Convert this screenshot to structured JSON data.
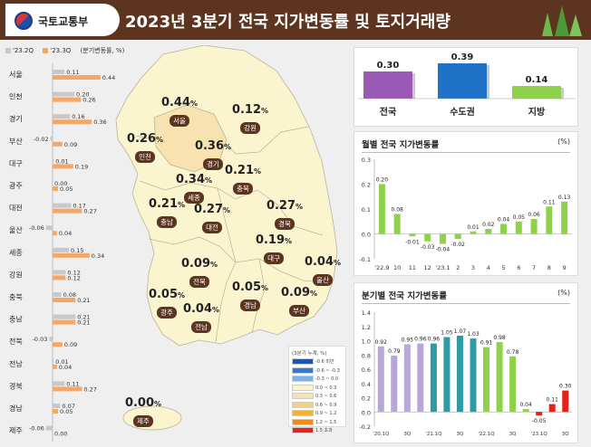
{
  "header": {
    "ministry": "국토교통부",
    "title": "2023년 3분기 전국 지가변동률 및 토지거래량"
  },
  "legend": {
    "q2": "'23.2Q",
    "q3": "'23.3Q",
    "unit": "(분기변동률, %)"
  },
  "colors": {
    "q2": "#c8c8c8",
    "q3": "#f4a867",
    "brand": "#5c3420",
    "purple": "#9b59b6",
    "blue": "#1f72c8",
    "green": "#8ed14b",
    "red": "#e5231b",
    "lavender": "#b8a6d6",
    "teal": "#2e9aa6",
    "map": "#fbf5cf",
    "map_light": "#f8e3b0"
  },
  "chart_data": [
    {
      "type": "bar",
      "title": "",
      "unit": "(분기변동률, %)",
      "categories": [
        "서울",
        "인천",
        "경기",
        "부산",
        "대구",
        "광주",
        "대전",
        "울산",
        "세종",
        "강원",
        "충북",
        "충남",
        "전북",
        "전남",
        "경북",
        "경남",
        "제주"
      ],
      "series": [
        {
          "name": "'23.2Q",
          "values": [
            0.11,
            0.2,
            0.16,
            -0.02,
            0.01,
            0.0,
            0.17,
            -0.06,
            0.15,
            0.12,
            0.08,
            0.21,
            -0.03,
            0.01,
            0.11,
            0.07,
            -0.06
          ]
        },
        {
          "name": "'23.3Q",
          "values": [
            0.44,
            0.26,
            0.36,
            0.09,
            0.19,
            0.05,
            0.27,
            0.04,
            0.34,
            0.12,
            0.21,
            0.21,
            0.09,
            0.04,
            0.27,
            0.05,
            0.0
          ]
        }
      ],
      "value_labels": {
        "q2": [
          "0.11",
          "0.20",
          "0.16",
          "-0.02",
          "0.01",
          "0.00",
          "0.17",
          "-0.06",
          "0.15",
          "0.12",
          "0.08",
          "0.21",
          "-0.03",
          "0.01",
          "0.11",
          "0.07",
          "-0.06"
        ],
        "q3": [
          "0.44",
          "0.26",
          "0.36",
          "0.09",
          "0.19",
          "0.05",
          "0.27",
          "0.04",
          "0.34",
          "0.12",
          "0.21",
          "0.21",
          "0.09",
          "0.04",
          "0.27",
          "0.05",
          "0.00"
        ]
      }
    },
    {
      "type": "bar",
      "title": "",
      "categories": [
        "전국",
        "수도권",
        "지방"
      ],
      "values": [
        0.3,
        0.39,
        0.14
      ],
      "value_labels": [
        "0.30",
        "0.39",
        "0.14"
      ]
    },
    {
      "type": "bar",
      "title": "월별 전국 지가변동률",
      "unit": "(%)",
      "categories": [
        "'22.9",
        "10",
        "11",
        "12",
        "'23.1",
        "2",
        "3",
        "4",
        "5",
        "6",
        "7",
        "8",
        "9"
      ],
      "values": [
        0.2,
        0.08,
        -0.01,
        -0.03,
        -0.04,
        -0.02,
        0.01,
        0.02,
        0.04,
        0.05,
        0.06,
        0.11,
        0.13
      ],
      "value_labels": [
        "0.20",
        "0.08",
        "-0.01",
        "-0.03",
        "-0.04",
        "-0.02",
        "0.01",
        "0.02",
        "0.04",
        "0.05",
        "0.06",
        "0.11",
        "0.13"
      ],
      "ylim": [
        -0.1,
        0.3
      ],
      "yticks": [
        "-0.1",
        "0.0",
        "0.1",
        "0.2",
        "0.3"
      ]
    },
    {
      "type": "bar",
      "title": "분기별 전국 지가변동률",
      "unit": "(%)",
      "categories": [
        "'20.1Q",
        "",
        "3Q",
        "",
        "'21.1Q",
        "",
        "3Q",
        "",
        "'22.1Q",
        "",
        "3Q",
        "",
        "'23.1Q",
        "",
        "3Q"
      ],
      "values": [
        0.92,
        0.79,
        0.95,
        0.96,
        0.96,
        1.05,
        1.07,
        1.03,
        0.91,
        0.98,
        0.78,
        0.04,
        -0.05,
        0.11,
        0.3
      ],
      "value_labels": [
        "0.92",
        "0.79",
        "0.95",
        "0.96",
        "0.96",
        "1.05",
        "1.07",
        "1.03",
        "0.91",
        "0.98",
        "0.78",
        "0.04",
        "-0.05",
        "0.11",
        "0.30"
      ],
      "ylim": [
        -0.2,
        1.4
      ],
      "yticks": [
        "-0.2",
        "0.0",
        "0.2",
        "0.4",
        "0.6",
        "0.8",
        "1.0",
        "1.2",
        "1.4"
      ]
    }
  ],
  "map": {
    "regions": [
      {
        "name": "서울",
        "value": "0.44"
      },
      {
        "name": "강원",
        "value": "0.12"
      },
      {
        "name": "인천",
        "value": "0.26"
      },
      {
        "name": "경기",
        "value": "0.36"
      },
      {
        "name": "세종",
        "value": "0.34"
      },
      {
        "name": "충북",
        "value": "0.21"
      },
      {
        "name": "충남",
        "value": "0.21"
      },
      {
        "name": "대전",
        "value": "0.27"
      },
      {
        "name": "경북",
        "value": "0.27"
      },
      {
        "name": "대구",
        "value": "0.19"
      },
      {
        "name": "울산",
        "value": "0.04"
      },
      {
        "name": "전북",
        "value": "0.09"
      },
      {
        "name": "광주",
        "value": "0.05"
      },
      {
        "name": "전남",
        "value": "0.04"
      },
      {
        "name": "경남",
        "value": "0.05"
      },
      {
        "name": "부산",
        "value": "0.09"
      },
      {
        "name": "제주",
        "value": "0.00"
      }
    ],
    "pct": "%"
  },
  "scale": {
    "title": "(3분기 누계, %)",
    "items": [
      {
        "label": "-0.6 미만",
        "color": "#1257c2"
      },
      {
        "label": "-0.6 ~ -0.3",
        "color": "#2e7ad6"
      },
      {
        "label": "-0.3 ~ 0.0",
        "color": "#7fb2ea"
      },
      {
        "label": "0.0 ~ 0.3",
        "color": "#fbf5cf"
      },
      {
        "label": "0.3 ~ 0.6",
        "color": "#f8e3b0"
      },
      {
        "label": "0.6 ~ 0.9",
        "color": "#f7d07a"
      },
      {
        "label": "0.9 ~ 1.2",
        "color": "#f2b136"
      },
      {
        "label": "1.2 ~ 1.5",
        "color": "#ee8a1f"
      },
      {
        "label": "1.5 초과",
        "color": "#e5231b"
      }
    ]
  }
}
